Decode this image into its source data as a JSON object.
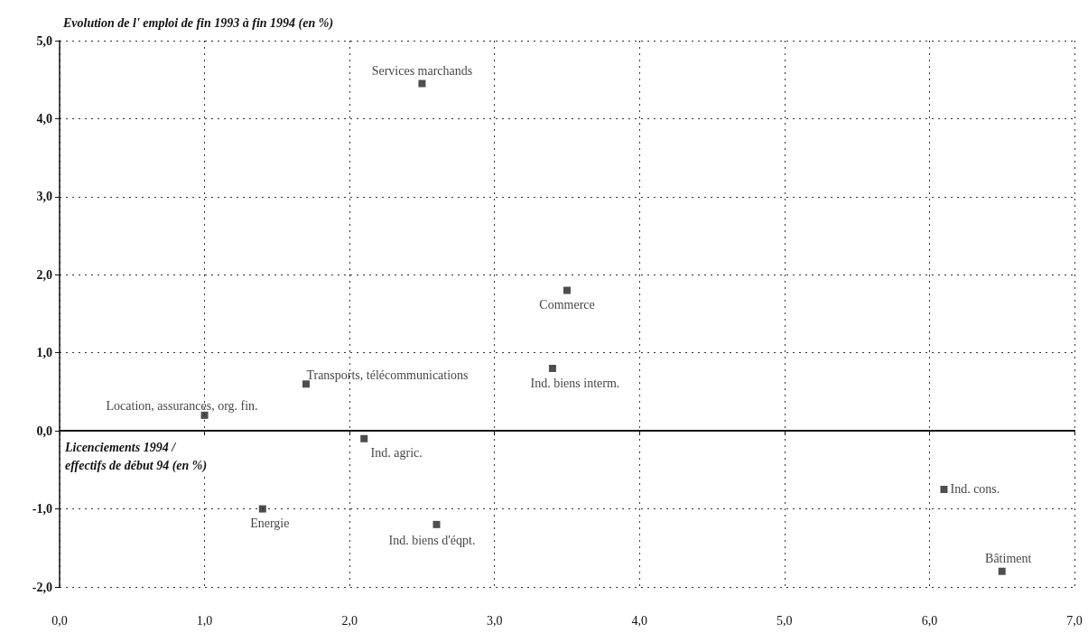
{
  "chart_data": {
    "type": "scatter",
    "xlabel": "Licenciements 1994 / effectifs de début 94 (en %)",
    "ylabel": "Evolution de l' emploi de fin 1993 à fin 1994 (en %)",
    "series": [
      {
        "color": "#222222",
        "x": [
          2.5,
          3.5,
          3.4,
          1.7,
          1.0,
          2.1,
          1.4,
          2.6,
          6.1,
          6.5
        ],
        "values": [
          4.45,
          1.8,
          0.8,
          0.6,
          0.2,
          -0.1,
          -1.0,
          -1.2,
          -0.75,
          -1.8
        ]
      }
    ],
    "annotations": [
      {
        "text": "Services marchands",
        "x": 2.5,
        "y": 4.45
      },
      {
        "text": "Commerce",
        "x": 3.5,
        "y": 1.8
      },
      {
        "text": "Ind. biens interm.",
        "x": 3.4,
        "y": 0.8
      },
      {
        "text": "Transports, télécommunications",
        "x": 1.7,
        "y": 0.6
      },
      {
        "text": "Location, assurances, org. fin.",
        "x": 1.0,
        "y": 0.2
      },
      {
        "text": "Ind. agric.",
        "x": 2.1,
        "y": -0.1
      },
      {
        "text": "Energie",
        "x": 1.4,
        "y": -1.0
      },
      {
        "text": "Ind. biens d'éqpt.",
        "x": 2.6,
        "y": -1.2
      },
      {
        "text": "Ind. cons.",
        "x": 6.1,
        "y": -0.75
      },
      {
        "text": "Bâtiment",
        "x": 6.5,
        "y": -1.8
      }
    ],
    "xlim": [
      0,
      7
    ],
    "ylim": [
      -2,
      5
    ],
    "xticks": [
      {
        "value": 0,
        "label": "0,0"
      },
      {
        "value": 1,
        "label": "1,0"
      },
      {
        "value": 2,
        "label": "2,0"
      },
      {
        "value": 3,
        "label": "3,0"
      },
      {
        "value": 4,
        "label": "4,0"
      },
      {
        "value": 5,
        "label": "5,0"
      },
      {
        "value": 6,
        "label": "6,0"
      },
      {
        "value": 7,
        "label": "7,0"
      }
    ],
    "yticks": [
      {
        "value": -2,
        "label": "-2,0"
      },
      {
        "value": -1,
        "label": "-1,0"
      },
      {
        "value": 0,
        "label": "0,0"
      },
      {
        "value": 1,
        "label": "1,0"
      },
      {
        "value": 2,
        "label": "2,0"
      },
      {
        "value": 3,
        "label": "3,0"
      },
      {
        "value": 4,
        "label": "4,0"
      },
      {
        "value": 5,
        "label": "5,0"
      }
    ],
    "grid": true,
    "marker": "square"
  }
}
